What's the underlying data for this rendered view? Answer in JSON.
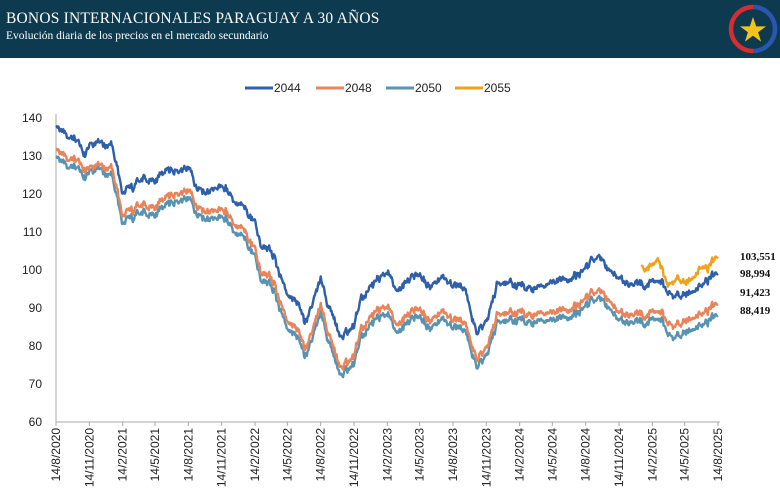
{
  "header": {
    "title": "BONOS INTERNACIONALES PARAGUAY A 30 AÑOS",
    "subtitle": "Evolución diaria de los precios en el mercado secundario",
    "logo_icon": "paraguay-star-seal-icon"
  },
  "colors": {
    "header_bg": "#0d3a4e",
    "s2044": "#2e5fa8",
    "s2048": "#e9835a",
    "s2050": "#5893b2",
    "s2055": "#f1a21a"
  },
  "chart_data": {
    "type": "line",
    "title": "",
    "xlabel": "",
    "ylabel": "",
    "ylim": [
      60,
      140
    ],
    "yticks": [
      "60",
      "70",
      "80",
      "90",
      "100",
      "110",
      "120",
      "130",
      "140"
    ],
    "xticks": [
      "14/8/2020",
      "14/11/2020",
      "14/2/2021",
      "14/5/2021",
      "14/8/2021",
      "14/11/2021",
      "14/2/2022",
      "14/5/2022",
      "14/8/2022",
      "14/11/2022",
      "14/2/2023",
      "14/5/2023",
      "14/8/2023",
      "14/11/2023",
      "14/2/2024",
      "14/5/2024",
      "14/8/2024",
      "14/11/2024",
      "14/2/2025",
      "14/5/2025",
      "14/8/2025"
    ],
    "legend_position": "top-center",
    "grid": false,
    "series": [
      {
        "name": "2044",
        "color": "#2e5fa8",
        "end_label": "98,994",
        "points": [
          [
            "14/8/2020",
            138
          ],
          [
            "14/9/2020",
            135
          ],
          [
            "14/10/2020",
            134
          ],
          [
            "1/11/2020",
            130
          ],
          [
            "14/11/2020",
            133
          ],
          [
            "14/12/2020",
            133
          ],
          [
            "14/1/2021",
            134
          ],
          [
            "1/2/2021",
            126
          ],
          [
            "14/2/2021",
            120
          ],
          [
            "14/3/2021",
            122
          ],
          [
            "14/4/2021",
            124
          ],
          [
            "14/5/2021",
            124
          ],
          [
            "14/6/2021",
            126
          ],
          [
            "14/7/2021",
            126
          ],
          [
            "14/8/2021",
            127
          ],
          [
            "1/9/2021",
            122
          ],
          [
            "1/10/2021",
            120
          ],
          [
            "1/11/2021",
            121
          ],
          [
            "14/11/2021",
            123
          ],
          [
            "14/12/2021",
            119
          ],
          [
            "14/1/2022",
            116
          ],
          [
            "14/2/2022",
            113
          ],
          [
            "1/3/2022",
            106
          ],
          [
            "1/4/2022",
            105
          ],
          [
            "1/5/2022",
            97
          ],
          [
            "20/5/2022",
            93
          ],
          [
            "14/6/2022",
            91
          ],
          [
            "1/7/2022",
            86
          ],
          [
            "14/7/2022",
            88
          ],
          [
            "14/8/2022",
            98
          ],
          [
            "1/9/2022",
            91
          ],
          [
            "20/9/2022",
            87
          ],
          [
            "10/10/2022",
            83
          ],
          [
            "14/11/2022",
            85
          ],
          [
            "1/12/2022",
            92
          ],
          [
            "14/1/2023",
            97
          ],
          [
            "14/2/2023",
            100
          ],
          [
            "14/3/2023",
            95
          ],
          [
            "14/4/2023",
            97
          ],
          [
            "14/5/2023",
            99
          ],
          [
            "14/6/2023",
            96
          ],
          [
            "14/7/2023",
            98
          ],
          [
            "14/8/2023",
            96
          ],
          [
            "14/9/2023",
            96
          ],
          [
            "14/10/2023",
            84
          ],
          [
            "14/11/2023",
            86
          ],
          [
            "14/12/2023",
            96
          ],
          [
            "14/1/2024",
            97
          ],
          [
            "14/2/2024",
            96
          ],
          [
            "14/3/2024",
            95
          ],
          [
            "14/4/2024",
            95
          ],
          [
            "14/5/2024",
            97
          ],
          [
            "14/6/2024",
            97
          ],
          [
            "14/7/2024",
            98
          ],
          [
            "14/8/2024",
            100
          ],
          [
            "14/9/2024",
            104
          ],
          [
            "14/10/2024",
            100
          ],
          [
            "14/11/2024",
            98
          ],
          [
            "14/12/2024",
            96
          ],
          [
            "14/1/2025",
            96
          ],
          [
            "14/2/2025",
            97
          ],
          [
            "14/3/2025",
            97
          ],
          [
            "1/4/2025",
            94
          ],
          [
            "14/4/2025",
            93
          ],
          [
            "14/5/2025",
            94
          ],
          [
            "14/6/2025",
            95
          ],
          [
            "14/7/2025",
            97
          ],
          [
            "14/8/2025",
            99
          ]
        ]
      },
      {
        "name": "2048",
        "color": "#e9835a",
        "end_label": "91,423",
        "points": [
          [
            "14/8/2020",
            132
          ],
          [
            "14/9/2020",
            129
          ],
          [
            "14/10/2020",
            129
          ],
          [
            "1/11/2020",
            126
          ],
          [
            "14/11/2020",
            127
          ],
          [
            "14/12/2020",
            127
          ],
          [
            "14/1/2021",
            128
          ],
          [
            "1/2/2021",
            120
          ],
          [
            "14/2/2021",
            114
          ],
          [
            "14/3/2021",
            116
          ],
          [
            "14/4/2021",
            117
          ],
          [
            "14/5/2021",
            117
          ],
          [
            "14/6/2021",
            119
          ],
          [
            "14/7/2021",
            120
          ],
          [
            "14/8/2021",
            121
          ],
          [
            "1/9/2021",
            117
          ],
          [
            "1/10/2021",
            115
          ],
          [
            "1/11/2021",
            115
          ],
          [
            "14/11/2021",
            117
          ],
          [
            "14/12/2021",
            113
          ],
          [
            "14/1/2022",
            110
          ],
          [
            "14/2/2022",
            106
          ],
          [
            "1/3/2022",
            99
          ],
          [
            "1/4/2022",
            98
          ],
          [
            "1/5/2022",
            90
          ],
          [
            "20/5/2022",
            86
          ],
          [
            "14/6/2022",
            84
          ],
          [
            "1/7/2022",
            79
          ],
          [
            "14/7/2022",
            81
          ],
          [
            "14/8/2022",
            91
          ],
          [
            "1/9/2022",
            84
          ],
          [
            "20/9/2022",
            79
          ],
          [
            "10/10/2022",
            75
          ],
          [
            "14/11/2022",
            77
          ],
          [
            "1/12/2022",
            84
          ],
          [
            "14/1/2023",
            89
          ],
          [
            "14/2/2023",
            91
          ],
          [
            "14/3/2023",
            86
          ],
          [
            "14/4/2023",
            88
          ],
          [
            "14/5/2023",
            90
          ],
          [
            "14/6/2023",
            87
          ],
          [
            "14/7/2023",
            89
          ],
          [
            "14/8/2023",
            87
          ],
          [
            "14/9/2023",
            87
          ],
          [
            "14/10/2023",
            77
          ],
          [
            "14/11/2023",
            79
          ],
          [
            "14/12/2023",
            88
          ],
          [
            "14/1/2024",
            89
          ],
          [
            "14/2/2024",
            89
          ],
          [
            "14/3/2024",
            88
          ],
          [
            "14/4/2024",
            88
          ],
          [
            "14/5/2024",
            89
          ],
          [
            "14/6/2024",
            89
          ],
          [
            "14/7/2024",
            90
          ],
          [
            "14/8/2024",
            92
          ],
          [
            "14/9/2024",
            95
          ],
          [
            "14/10/2024",
            92
          ],
          [
            "14/11/2024",
            89
          ],
          [
            "14/12/2024",
            88
          ],
          [
            "14/1/2025",
            88
          ],
          [
            "14/2/2025",
            89
          ],
          [
            "14/3/2025",
            89
          ],
          [
            "1/4/2025",
            86
          ],
          [
            "14/4/2025",
            85
          ],
          [
            "14/5/2025",
            87
          ],
          [
            "14/6/2025",
            88
          ],
          [
            "14/7/2025",
            89
          ],
          [
            "14/8/2025",
            91
          ]
        ]
      },
      {
        "name": "2050",
        "color": "#5893b2",
        "end_label": "88,419",
        "points": [
          [
            "14/8/2020",
            130
          ],
          [
            "14/9/2020",
            127
          ],
          [
            "14/10/2020",
            127
          ],
          [
            "1/11/2020",
            124
          ],
          [
            "14/11/2020",
            126
          ],
          [
            "14/12/2020",
            126
          ],
          [
            "14/1/2021",
            126
          ],
          [
            "1/2/2021",
            118
          ],
          [
            "14/2/2021",
            112
          ],
          [
            "14/3/2021",
            114
          ],
          [
            "14/4/2021",
            115
          ],
          [
            "14/5/2021",
            115
          ],
          [
            "14/6/2021",
            117
          ],
          [
            "14/7/2021",
            118
          ],
          [
            "14/8/2021",
            119
          ],
          [
            "1/9/2021",
            115
          ],
          [
            "1/10/2021",
            113
          ],
          [
            "1/11/2021",
            113
          ],
          [
            "14/11/2021",
            115
          ],
          [
            "14/12/2021",
            111
          ],
          [
            "14/1/2022",
            108
          ],
          [
            "14/2/2022",
            104
          ],
          [
            "1/3/2022",
            97
          ],
          [
            "1/4/2022",
            96
          ],
          [
            "1/5/2022",
            88
          ],
          [
            "20/5/2022",
            84
          ],
          [
            "14/6/2022",
            82
          ],
          [
            "1/7/2022",
            77
          ],
          [
            "14/7/2022",
            79
          ],
          [
            "14/8/2022",
            89
          ],
          [
            "1/9/2022",
            82
          ],
          [
            "20/9/2022",
            77
          ],
          [
            "10/10/2022",
            73
          ],
          [
            "14/11/2022",
            75
          ],
          [
            "1/12/2022",
            82
          ],
          [
            "14/1/2023",
            87
          ],
          [
            "14/2/2023",
            89
          ],
          [
            "14/3/2023",
            84
          ],
          [
            "14/4/2023",
            86
          ],
          [
            "14/5/2023",
            88
          ],
          [
            "14/6/2023",
            85
          ],
          [
            "14/7/2023",
            87
          ],
          [
            "14/8/2023",
            85
          ],
          [
            "14/9/2023",
            85
          ],
          [
            "14/10/2023",
            75
          ],
          [
            "14/11/2023",
            77
          ],
          [
            "14/12/2023",
            86
          ],
          [
            "14/1/2024",
            87
          ],
          [
            "14/2/2024",
            87
          ],
          [
            "14/3/2024",
            86
          ],
          [
            "14/4/2024",
            86
          ],
          [
            "14/5/2024",
            87
          ],
          [
            "14/6/2024",
            87
          ],
          [
            "14/7/2024",
            88
          ],
          [
            "14/8/2024",
            90
          ],
          [
            "14/9/2024",
            93
          ],
          [
            "14/10/2024",
            90
          ],
          [
            "14/11/2024",
            87
          ],
          [
            "14/12/2024",
            86
          ],
          [
            "14/1/2025",
            86
          ],
          [
            "14/2/2025",
            87
          ],
          [
            "14/3/2025",
            87
          ],
          [
            "1/4/2025",
            83
          ],
          [
            "14/4/2025",
            82
          ],
          [
            "14/5/2025",
            84
          ],
          [
            "14/6/2025",
            85
          ],
          [
            "14/7/2025",
            86
          ],
          [
            "14/8/2025",
            88
          ]
        ]
      },
      {
        "name": "2055",
        "color": "#f1a21a",
        "end_label": "103,551",
        "points": [
          [
            "14/1/2025",
            101
          ],
          [
            "1/2/2025",
            101
          ],
          [
            "14/2/2025",
            101
          ],
          [
            "1/3/2025",
            103
          ],
          [
            "14/3/2025",
            100
          ],
          [
            "1/4/2025",
            96
          ],
          [
            "14/4/2025",
            97
          ],
          [
            "1/5/2025",
            98
          ],
          [
            "14/5/2025",
            97
          ],
          [
            "1/6/2025",
            98
          ],
          [
            "14/6/2025",
            99
          ],
          [
            "1/7/2025",
            101
          ],
          [
            "14/7/2025",
            100
          ],
          [
            "1/8/2025",
            102
          ],
          [
            "14/8/2025",
            103.5
          ]
        ]
      }
    ]
  }
}
